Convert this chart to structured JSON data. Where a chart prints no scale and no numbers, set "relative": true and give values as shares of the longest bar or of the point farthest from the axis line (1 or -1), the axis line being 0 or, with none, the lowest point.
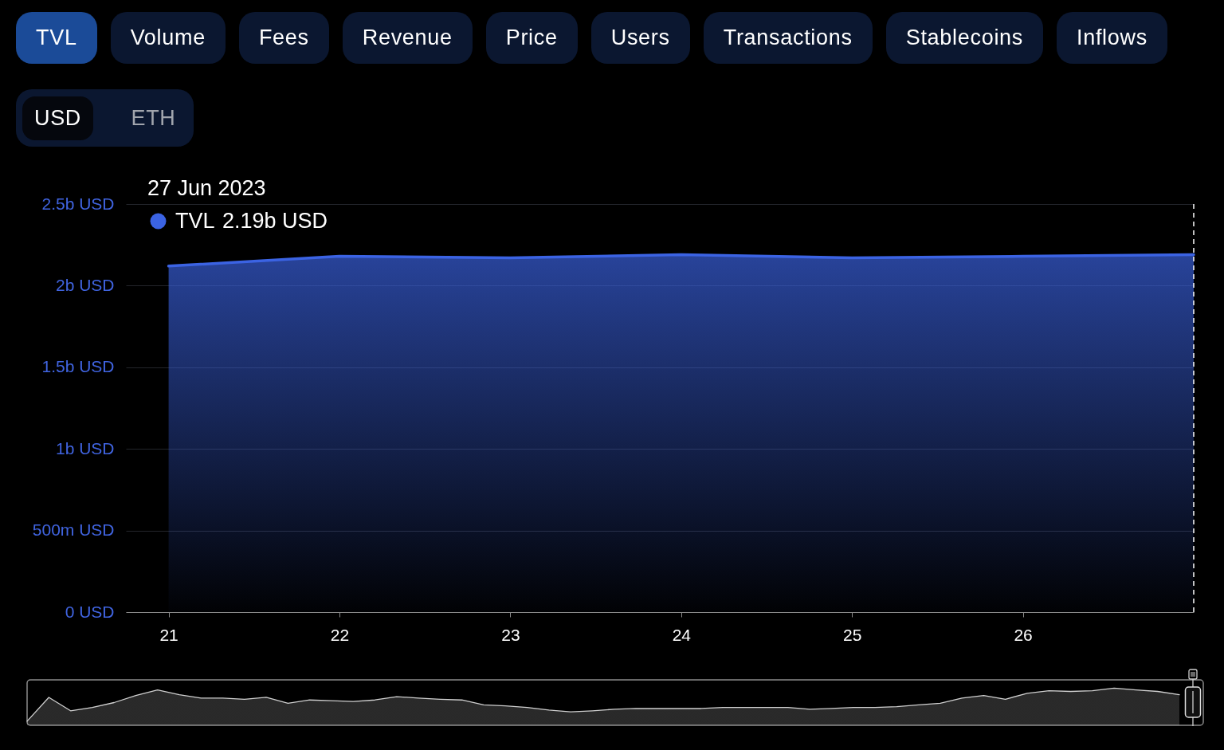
{
  "chart_data": [
    {
      "type": "other",
      "annotations": [
        "TVL",
        "Volume",
        "Fees",
        "Revenue",
        "Price",
        "Users",
        "Transactions",
        "Stablecoins",
        "Inflows"
      ]
    },
    {
      "type": "other",
      "annotations": [
        "USD",
        "ETH"
      ]
    },
    {
      "type": "area",
      "x": [
        "2023-06-21",
        "2023-06-22",
        "2023-06-23",
        "2023-06-24",
        "2023-06-25",
        "2023-06-26",
        "2023-06-27"
      ],
      "series": [
        {
          "name": "TVL",
          "color": "#3b63e3",
          "values": [
            2120000000,
            2180000000,
            2170000000,
            2190000000,
            2170000000,
            2180000000,
            2190000000
          ]
        }
      ],
      "xlim": [
        "2023-06-20T18:00",
        "2023-06-27"
      ],
      "xticks": [
        {
          "value": "2023-06-21",
          "label": "21"
        },
        {
          "value": "2023-06-22",
          "label": "22"
        },
        {
          "value": "2023-06-23",
          "label": "23"
        },
        {
          "value": "2023-06-24",
          "label": "24"
        },
        {
          "value": "2023-06-25",
          "label": "25"
        },
        {
          "value": "2023-06-26",
          "label": "26"
        }
      ],
      "ylim": [
        0,
        2500000000
      ],
      "yticks": [
        {
          "value": 0,
          "label": "0 USD"
        },
        {
          "value": 500000000,
          "label": "500m USD"
        },
        {
          "value": 1000000000,
          "label": "1b USD"
        },
        {
          "value": 1500000000,
          "label": "1.5b USD"
        },
        {
          "value": 2000000000,
          "label": "2b USD"
        },
        {
          "value": 2500000000,
          "label": "2.5b USD"
        }
      ],
      "grid": "y",
      "legend": "top left",
      "ref_lines": [
        {
          "axis": "x",
          "value": "2023-06-27",
          "color": "#ffffff",
          "line_style": "dashed"
        }
      ],
      "annotations": [
        "27 Jun 2023",
        "2.19b USD"
      ]
    },
    {
      "type": "area",
      "relative": true,
      "categories": [
        null,
        null,
        null,
        null,
        null,
        null,
        null,
        null,
        null,
        null,
        null,
        null,
        null,
        null,
        null,
        null,
        null,
        null,
        null,
        null,
        null,
        null,
        null,
        null,
        null,
        null,
        null,
        null,
        null,
        null,
        null,
        null,
        null,
        null,
        null,
        null,
        null,
        null,
        null,
        null,
        null,
        null,
        null,
        null,
        null,
        null,
        null,
        null,
        null,
        null,
        null,
        null,
        null,
        null
      ],
      "series": [
        {
          "color": "#d0d0d0",
          "values": [
            0.11,
            0.75,
            0.39,
            0.48,
            0.61,
            0.8,
            0.95,
            0.82,
            0.73,
            0.73,
            0.7,
            0.75,
            0.59,
            0.68,
            0.66,
            0.64,
            0.68,
            0.77,
            0.73,
            0.7,
            0.68,
            0.55,
            0.52,
            0.48,
            0.41,
            0.36,
            0.39,
            0.43,
            0.45,
            0.45,
            0.45,
            0.45,
            0.48,
            0.48,
            0.48,
            0.48,
            0.43,
            0.45,
            0.48,
            0.48,
            0.5,
            0.55,
            0.59,
            0.73,
            0.8,
            0.7,
            0.86,
            0.93,
            0.91,
            0.93,
            1.0,
            0.95,
            0.91,
            0.82
          ]
        }
      ]
    }
  ]
}
